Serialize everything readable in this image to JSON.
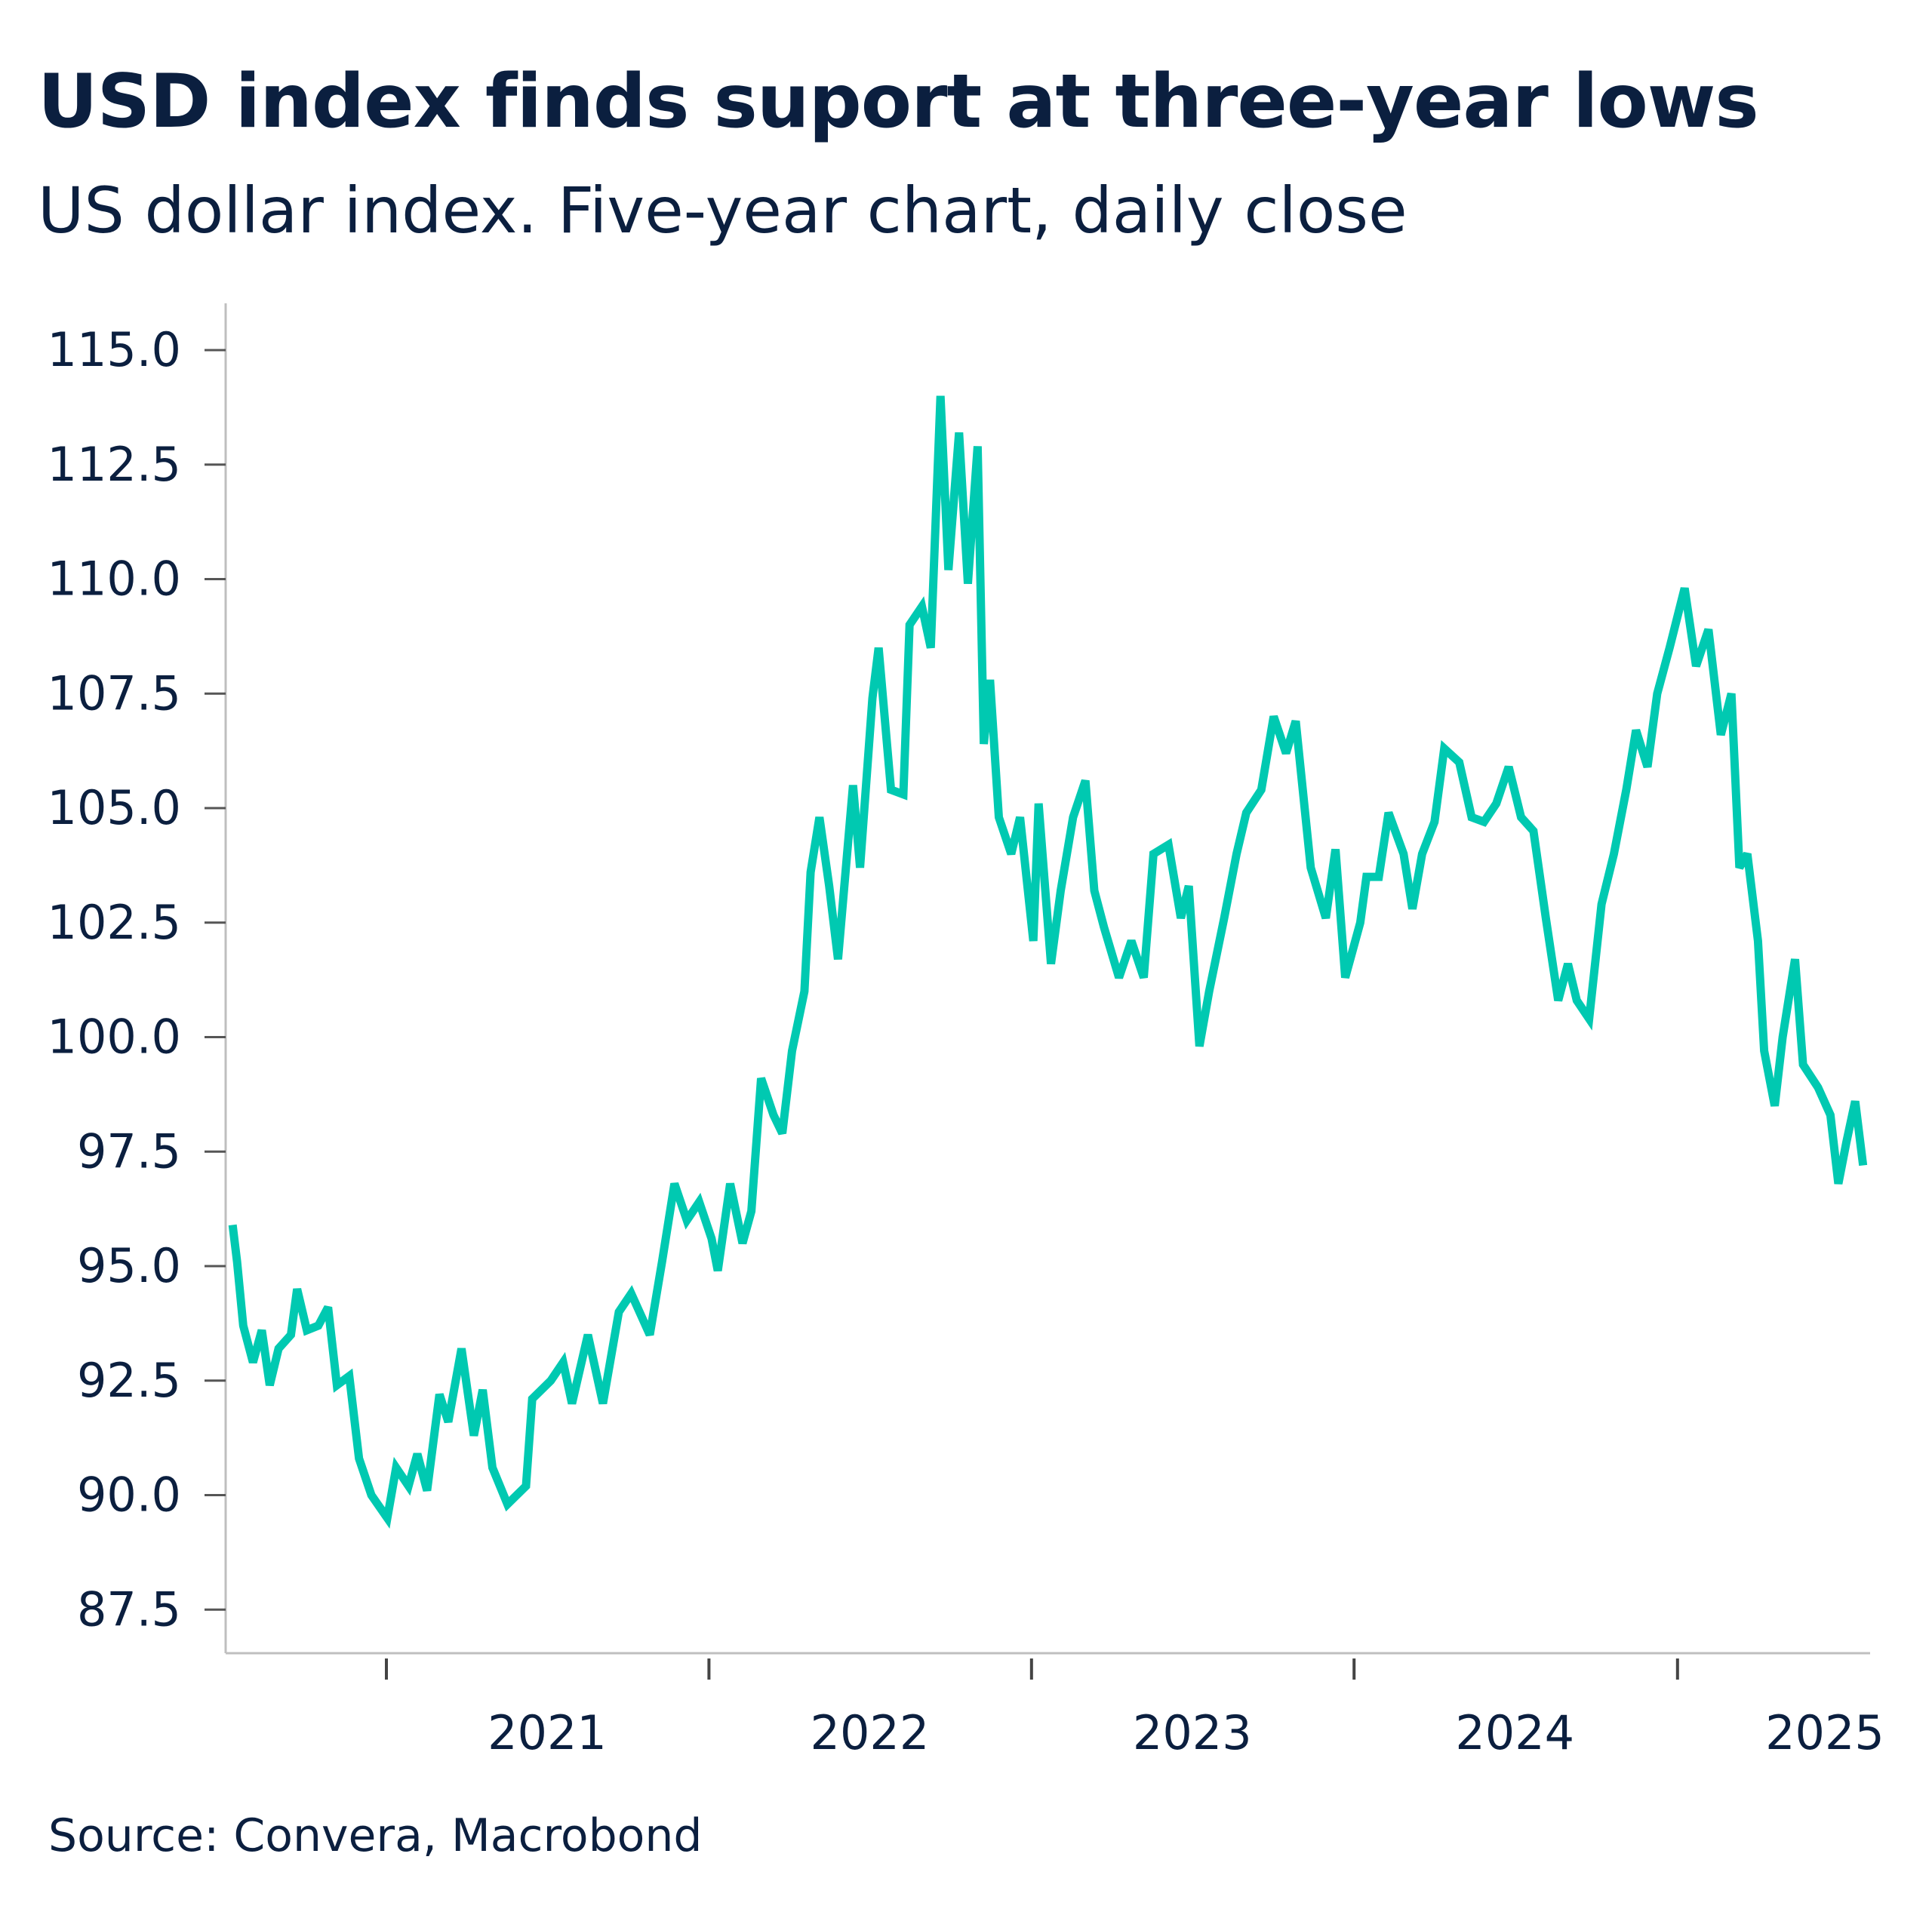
{
  "title": "USD index finds suport at three-year lows",
  "subtitle": "US dollar index. Five-year chart, daily close",
  "source": "Source: Convera, Macrobond",
  "colors": {
    "line": "#00c9b1",
    "text": "#0b1f3f",
    "axis": "#bfbfbf"
  },
  "chart_data": {
    "type": "line",
    "title": "USD index finds suport at three-year lows",
    "subtitle": "US dollar index. Five-year chart, daily close",
    "xlabel": "",
    "ylabel": "",
    "ylim": [
      86.5,
      116
    ],
    "xlim": [
      "2020-07-01",
      "2025-08-05"
    ],
    "grid": false,
    "legend": "none",
    "y_ticks": [
      "87.5",
      "90.0",
      "92.5",
      "95.0",
      "97.5",
      "100.0",
      "102.5",
      "105.0",
      "107.5",
      "110.0",
      "112.5",
      "115.0"
    ],
    "x_ticks": [
      "2021",
      "2022",
      "2023",
      "2024",
      "2025"
    ],
    "series": [
      {
        "points": [
          [
            "2020-07-11",
            95.9
          ],
          [
            "2020-07-16",
            95.1
          ],
          [
            "2020-07-23",
            93.7
          ],
          [
            "2020-08-03",
            92.9
          ],
          [
            "2020-08-13",
            93.6
          ],
          [
            "2020-08-22",
            92.4
          ],
          [
            "2020-09-01",
            93.2
          ],
          [
            "2020-09-15",
            93.5
          ],
          [
            "2020-09-22",
            94.5
          ],
          [
            "2020-10-03",
            93.6
          ],
          [
            "2020-10-16",
            93.7
          ],
          [
            "2020-10-27",
            94.1
          ],
          [
            "2020-11-06",
            92.4
          ],
          [
            "2020-11-20",
            92.6
          ],
          [
            "2020-12-01",
            90.8
          ],
          [
            "2020-12-15",
            90.0
          ],
          [
            "2021-01-02",
            89.5
          ],
          [
            "2021-01-12",
            90.6
          ],
          [
            "2021-01-26",
            90.2
          ],
          [
            "2021-02-05",
            90.9
          ],
          [
            "2021-02-16",
            90.1
          ],
          [
            "2021-03-02",
            92.2
          ],
          [
            "2021-03-12",
            91.6
          ],
          [
            "2021-03-27",
            93.2
          ],
          [
            "2021-04-10",
            91.3
          ],
          [
            "2021-04-20",
            92.3
          ],
          [
            "2021-05-01",
            90.6
          ],
          [
            "2021-05-18",
            89.8
          ],
          [
            "2021-06-08",
            90.2
          ],
          [
            "2021-06-15",
            92.1
          ],
          [
            "2021-07-06",
            92.5
          ],
          [
            "2021-07-20",
            92.9
          ],
          [
            "2021-07-30",
            92.0
          ],
          [
            "2021-08-17",
            93.5
          ],
          [
            "2021-09-03",
            92.0
          ],
          [
            "2021-09-21",
            94.0
          ],
          [
            "2021-10-05",
            94.4
          ],
          [
            "2021-10-26",
            93.5
          ],
          [
            "2021-11-09",
            95.1
          ],
          [
            "2021-11-23",
            96.8
          ],
          [
            "2021-12-07",
            96.0
          ],
          [
            "2021-12-21",
            96.4
          ],
          [
            "2022-01-04",
            95.6
          ],
          [
            "2022-01-11",
            94.9
          ],
          [
            "2022-01-25",
            96.8
          ],
          [
            "2022-02-08",
            95.5
          ],
          [
            "2022-02-18",
            96.2
          ],
          [
            "2022-03-01",
            99.1
          ],
          [
            "2022-03-15",
            98.3
          ],
          [
            "2022-03-25",
            97.9
          ],
          [
            "2022-04-05",
            99.7
          ],
          [
            "2022-04-19",
            101.0
          ],
          [
            "2022-04-26",
            103.6
          ],
          [
            "2022-05-06",
            104.8
          ],
          [
            "2022-05-17",
            103.3
          ],
          [
            "2022-05-27",
            101.7
          ],
          [
            "2022-06-13",
            105.5
          ],
          [
            "2022-06-21",
            103.7
          ],
          [
            "2022-07-05",
            107.4
          ],
          [
            "2022-07-12",
            108.5
          ],
          [
            "2022-07-26",
            105.4
          ],
          [
            "2022-08-09",
            105.3
          ],
          [
            "2022-08-16",
            109.0
          ],
          [
            "2022-08-30",
            109.4
          ],
          [
            "2022-09-09",
            108.5
          ],
          [
            "2022-09-20",
            114.0
          ],
          [
            "2022-09-29",
            110.2
          ],
          [
            "2022-10-11",
            113.2
          ],
          [
            "2022-10-21",
            109.9
          ],
          [
            "2022-11-01",
            112.9
          ],
          [
            "2022-11-08",
            106.4
          ],
          [
            "2022-11-15",
            107.8
          ],
          [
            "2022-11-25",
            104.8
          ],
          [
            "2022-12-09",
            104.0
          ],
          [
            "2022-12-19",
            104.8
          ],
          [
            "2023-01-03",
            102.1
          ],
          [
            "2023-01-09",
            105.1
          ],
          [
            "2023-01-23",
            101.6
          ],
          [
            "2023-02-03",
            103.2
          ],
          [
            "2023-02-17",
            104.8
          ],
          [
            "2023-03-03",
            105.6
          ],
          [
            "2023-03-13",
            103.2
          ],
          [
            "2023-03-24",
            102.4
          ],
          [
            "2023-04-10",
            101.3
          ],
          [
            "2023-04-24",
            102.1
          ],
          [
            "2023-05-08",
            101.3
          ],
          [
            "2023-05-19",
            104.0
          ],
          [
            "2023-06-05",
            104.2
          ],
          [
            "2023-06-19",
            102.6
          ],
          [
            "2023-06-28",
            103.3
          ],
          [
            "2023-07-10",
            99.8
          ],
          [
            "2023-07-21",
            101.0
          ],
          [
            "2023-08-07",
            102.6
          ],
          [
            "2023-08-21",
            104.0
          ],
          [
            "2023-09-01",
            104.9
          ],
          [
            "2023-09-18",
            105.4
          ],
          [
            "2023-10-02",
            107.0
          ],
          [
            "2023-10-16",
            106.2
          ],
          [
            "2023-10-27",
            106.9
          ],
          [
            "2023-11-13",
            103.7
          ],
          [
            "2023-11-30",
            102.6
          ],
          [
            "2023-12-11",
            104.1
          ],
          [
            "2023-12-22",
            101.3
          ],
          [
            "2024-01-08",
            102.5
          ],
          [
            "2024-01-15",
            103.5
          ],
          [
            "2024-01-29",
            103.5
          ],
          [
            "2024-02-09",
            104.9
          ],
          [
            "2024-02-26",
            104.0
          ],
          [
            "2024-03-07",
            102.8
          ],
          [
            "2024-03-18",
            104.0
          ],
          [
            "2024-04-01",
            104.7
          ],
          [
            "2024-04-12",
            106.3
          ],
          [
            "2024-04-29",
            106.0
          ],
          [
            "2024-05-13",
            104.8
          ],
          [
            "2024-05-27",
            104.7
          ],
          [
            "2024-06-10",
            105.1
          ],
          [
            "2024-06-24",
            105.9
          ],
          [
            "2024-07-08",
            104.8
          ],
          [
            "2024-07-22",
            104.5
          ],
          [
            "2024-08-05",
            102.6
          ],
          [
            "2024-08-19",
            100.8
          ],
          [
            "2024-08-30",
            101.6
          ],
          [
            "2024-09-09",
            100.8
          ],
          [
            "2024-09-23",
            100.4
          ],
          [
            "2024-10-07",
            102.9
          ],
          [
            "2024-10-21",
            104.0
          ],
          [
            "2024-11-04",
            105.4
          ],
          [
            "2024-11-15",
            106.7
          ],
          [
            "2024-11-28",
            105.9
          ],
          [
            "2024-12-09",
            107.5
          ],
          [
            "2024-12-23",
            108.5
          ],
          [
            "2025-01-09",
            109.8
          ],
          [
            "2025-01-22",
            108.1
          ],
          [
            "2025-02-05",
            108.9
          ],
          [
            "2025-02-19",
            106.6
          ],
          [
            "2025-03-03",
            107.5
          ],
          [
            "2025-03-12",
            103.7
          ],
          [
            "2025-03-21",
            104.0
          ],
          [
            "2025-04-02",
            102.1
          ],
          [
            "2025-04-09",
            99.7
          ],
          [
            "2025-04-21",
            98.5
          ],
          [
            "2025-04-30",
            100.0
          ],
          [
            "2025-05-14",
            101.7
          ],
          [
            "2025-05-23",
            99.4
          ],
          [
            "2025-06-09",
            98.9
          ],
          [
            "2025-06-23",
            98.3
          ],
          [
            "2025-07-02",
            96.8
          ],
          [
            "2025-07-11",
            97.7
          ],
          [
            "2025-07-21",
            98.6
          ],
          [
            "2025-07-30",
            97.2
          ]
        ]
      }
    ]
  }
}
